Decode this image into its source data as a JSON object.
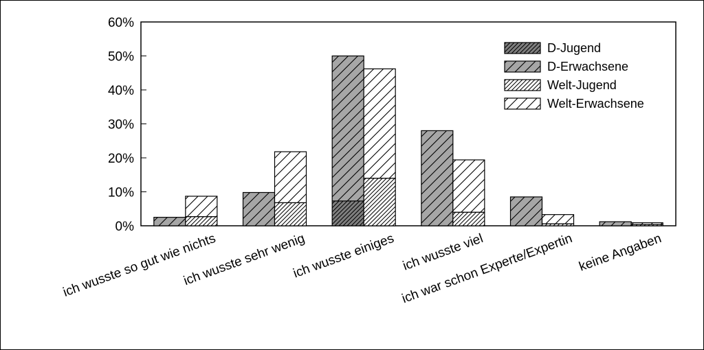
{
  "chart_data": {
    "type": "bar",
    "stacked_pairs": true,
    "categories": [
      "ich wusste so gut wie nichts",
      "ich wusste sehr wenig",
      "ich wusste einiges",
      "ich wusste viel",
      "ich war schon Experte/Expertin",
      "keine Angaben"
    ],
    "stacks": [
      {
        "name": "D",
        "parts": [
          "D-Jugend",
          "D-Erwachsene"
        ]
      },
      {
        "name": "Welt",
        "parts": [
          "Welt-Jugend",
          "Welt-Erwachsene"
        ]
      }
    ],
    "series": [
      {
        "name": "D-Jugend",
        "values": [
          0.0,
          0.0,
          7.3,
          0.0,
          0.0,
          0.0
        ],
        "fill": "#7f7f7f",
        "hatch": "dense"
      },
      {
        "name": "D-Erwachsene",
        "values": [
          2.5,
          9.8,
          42.7,
          28.0,
          8.5,
          1.2
        ],
        "fill": "#a6a6a6",
        "hatch": "sparse"
      },
      {
        "name": "Welt-Jugend",
        "values": [
          2.7,
          6.8,
          14.0,
          4.0,
          0.6,
          0.4
        ],
        "fill": "#ffffff",
        "hatch": "dense"
      },
      {
        "name": "Welt-Erwachsene",
        "values": [
          6.0,
          15.0,
          32.2,
          15.4,
          2.7,
          0.5
        ],
        "fill": "#ffffff",
        "hatch": "sparse"
      }
    ],
    "ylim": [
      0,
      60
    ],
    "yticks": [
      "0%",
      "10%",
      "20%",
      "30%",
      "40%",
      "50%",
      "60%"
    ],
    "legend_position": "top-right",
    "grid": false
  }
}
